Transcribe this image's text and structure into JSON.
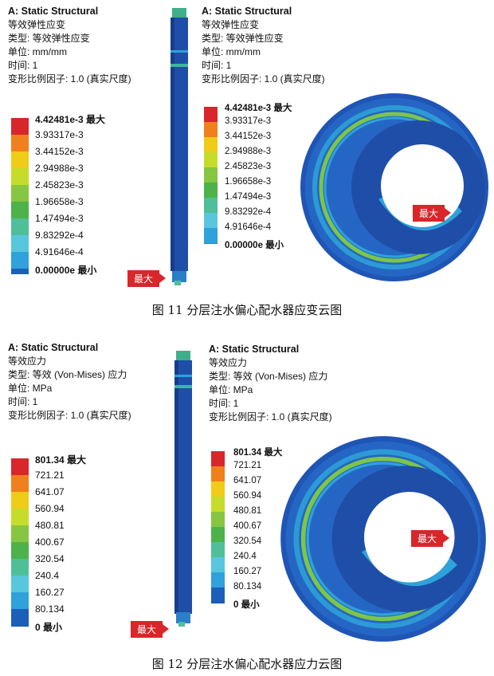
{
  "fig11": {
    "panel_left": {
      "title": "A: Static Structural",
      "lines": [
        "等效弹性应变",
        "类型: 等效弹性应变",
        "单位: mm/mm",
        "时间: 1",
        "变形比例因子: 1.0 (真实尺度)"
      ],
      "legend": [
        "4.42481e-3 最大",
        "3.93317e-3",
        "3.44152e-3",
        "2.94988e-3",
        "2.45823e-3",
        "1.96658e-3",
        "1.47494e-3",
        "9.83292e-4",
        "4.91646e-4",
        "0.00000e 最小"
      ]
    },
    "panel_right": {
      "title": "A: Static Structural",
      "lines": [
        "等效弹性应变",
        "类型: 等效弹性应变",
        "单位: mm/mm",
        "时间: 1",
        "变形比例因子: 1.0 (真实尺度)"
      ],
      "legend": [
        "4.42481e-3 最大",
        "3.93317e-3",
        "3.44152e-3",
        "2.94988e-3",
        "2.45823e-3",
        "1.96658e-3",
        "1.47494e-3",
        "9.83292e-4",
        "4.91646e-4",
        "0.00000e 最小"
      ]
    },
    "max_tag": "最大",
    "caption": "图 11    分层注水偏心配水器应变云图"
  },
  "fig12": {
    "panel_left": {
      "title": "A: Static Structural",
      "lines": [
        "等效应力",
        "类型: 等效 (Von-Mises) 应力",
        "单位: MPa",
        "时间: 1",
        "变形比例因子: 1.0 (真实尺度)"
      ],
      "legend": [
        "801.34 最大",
        "721.21",
        "641.07",
        "560.94",
        "480.81",
        "400.67",
        "320.54",
        "240.4",
        "160.27",
        "80.134",
        "0 最小"
      ]
    },
    "panel_right": {
      "title": "A: Static Structural",
      "lines": [
        "等效应力",
        "类型: 等效 (Von-Mises) 应力",
        "单位: MPa",
        "时间: 1",
        "变形比例因子: 1.0 (真实尺度)"
      ],
      "legend": [
        "801.34 最大",
        "721.21",
        "641.07",
        "560.94",
        "480.81",
        "400.67",
        "320.54",
        "240.4",
        "160.27",
        "80.134",
        "0 最小"
      ]
    },
    "max_tag": "最大",
    "caption": "图 12    分层注水偏心配水器应力云图"
  },
  "colors": [
    "#d8262b",
    "#f07f1e",
    "#efcc18",
    "#c6dc2b",
    "#86c640",
    "#4db24a",
    "#4fbf99",
    "#58c6dc",
    "#2fa1db",
    "#1c5fbb"
  ]
}
